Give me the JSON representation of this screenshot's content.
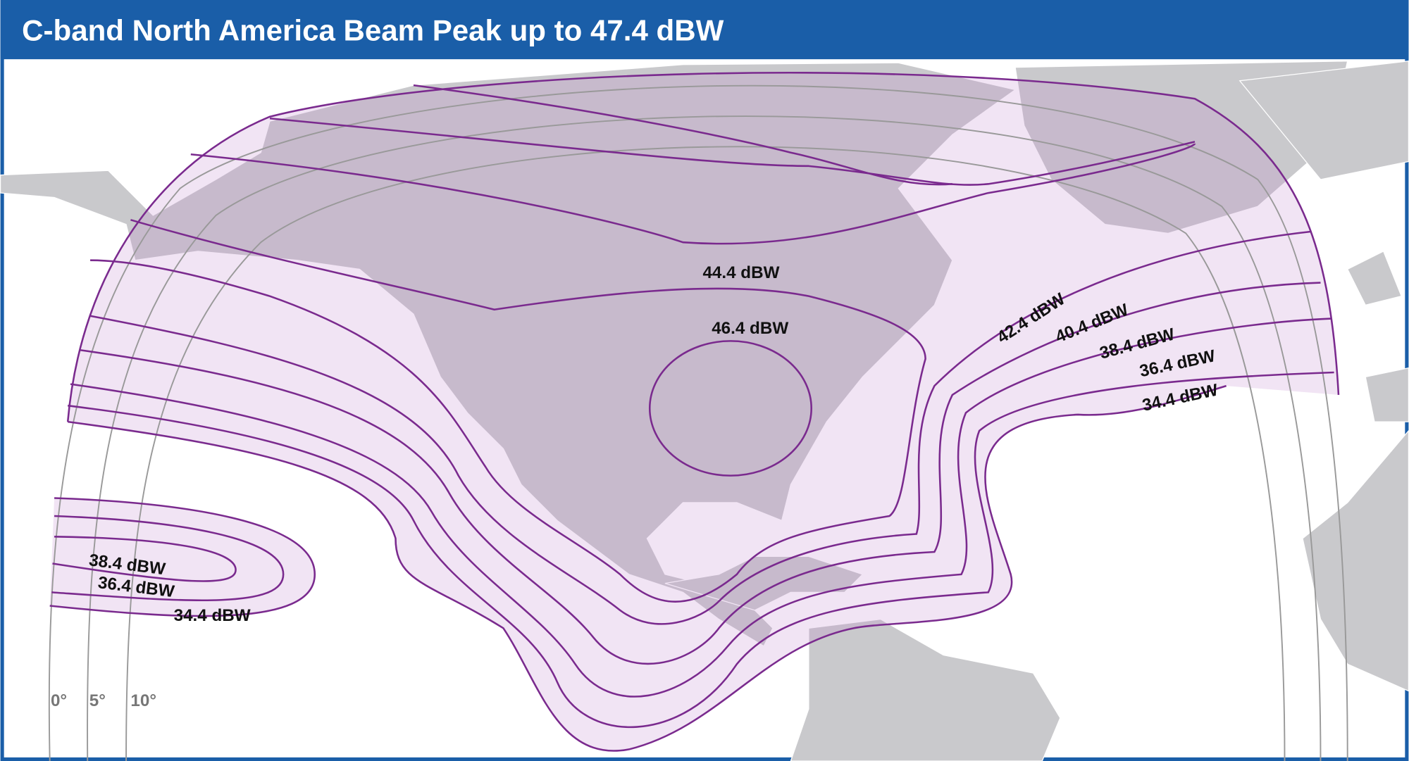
{
  "title": "C-band North America Beam Peak up to 47.4 dBW",
  "contours": [
    {
      "label": "46.4 dBW"
    },
    {
      "label": "44.4 dBW"
    },
    {
      "label": "42.4 dBW"
    },
    {
      "label": "40.4 dBW"
    },
    {
      "label": "38.4 dBW"
    },
    {
      "label": "36.4 dBW"
    },
    {
      "label": "34.4 dBW"
    }
  ],
  "hawaii_contours": [
    {
      "label": "38.4 dBW"
    },
    {
      "label": "36.4 dBW"
    },
    {
      "label": "34.4 dBW"
    }
  ],
  "elevation_angles": [
    "0°",
    "5°",
    "10°"
  ]
}
